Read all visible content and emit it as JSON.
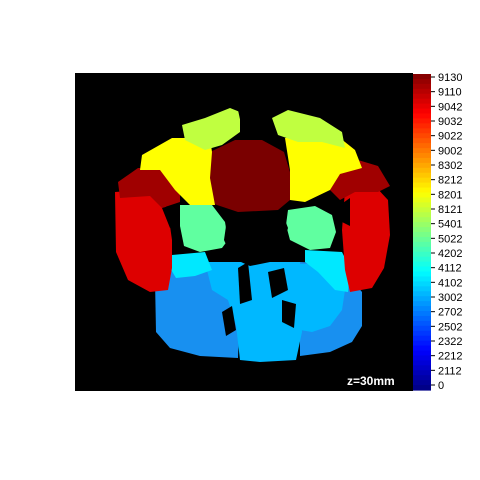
{
  "slice_label": "z=30mm",
  "colorbar": {
    "labels": [
      "9130",
      "9110",
      "9042",
      "9032",
      "9022",
      "9002",
      "8302",
      "8212",
      "8201",
      "8121",
      "5401",
      "5022",
      "4202",
      "4112",
      "4102",
      "3002",
      "2702",
      "2502",
      "2322",
      "2212",
      "2112",
      "0"
    ]
  },
  "colors": {
    "background": "#000000",
    "regions": {
      "dark_red": "#7a0000",
      "red": "#dd0000",
      "yellow": "#ffff00",
      "yellow_green": "#c0ff40",
      "aquamarine": "#60ffa0",
      "cyan": "#00e8ff",
      "sky_blue": "#00b8ff",
      "blue": "#1890f0"
    }
  }
}
